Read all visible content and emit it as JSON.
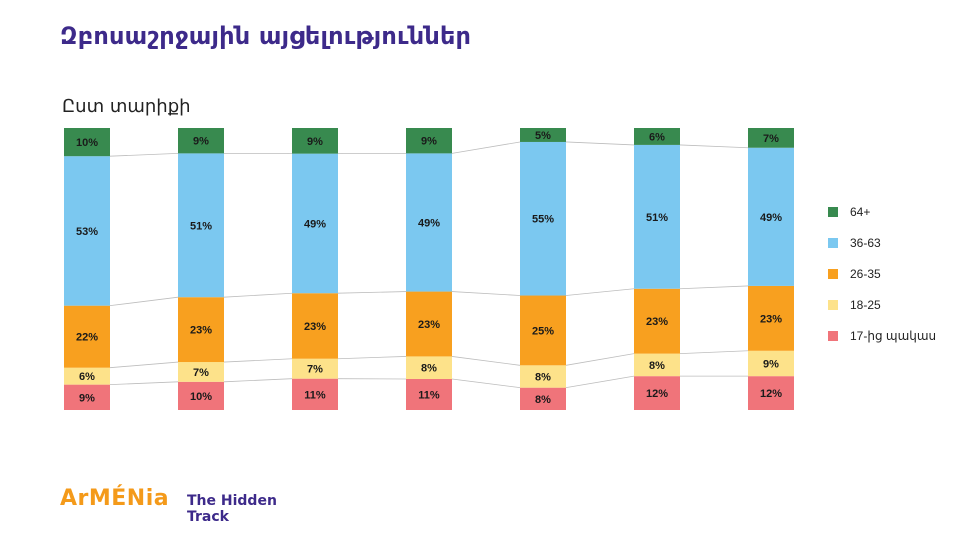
{
  "title": "Զբոսաշրջային այցելություններ",
  "subtitle": "Ըստ տարիքի",
  "brand": {
    "logo_text": "ArMÉNia",
    "tagline": "The Hidden Track"
  },
  "chart_data": {
    "type": "bar",
    "stacked": true,
    "title": "",
    "categories": [
      "",
      "",
      "",
      "",
      "",
      "",
      ""
    ],
    "ylim": [
      0,
      100
    ],
    "legend_position": "right",
    "series": [
      {
        "name": "17-ից պակաս",
        "color": "#f0747a",
        "values": [
          9,
          10,
          11,
          11,
          8,
          12,
          12
        ]
      },
      {
        "name": "18-25",
        "color": "#fde28a",
        "values": [
          6,
          7,
          7,
          8,
          8,
          8,
          9
        ]
      },
      {
        "name": "26-35",
        "color": "#f8a01f",
        "values": [
          22,
          23,
          23,
          23,
          25,
          23,
          23
        ]
      },
      {
        "name": "36-63",
        "color": "#7bc8f0",
        "values": [
          53,
          51,
          49,
          49,
          55,
          51,
          49
        ]
      },
      {
        "name": "64+",
        "color": "#388a4f",
        "values": [
          10,
          9,
          9,
          9,
          5,
          6,
          7
        ]
      }
    ]
  }
}
